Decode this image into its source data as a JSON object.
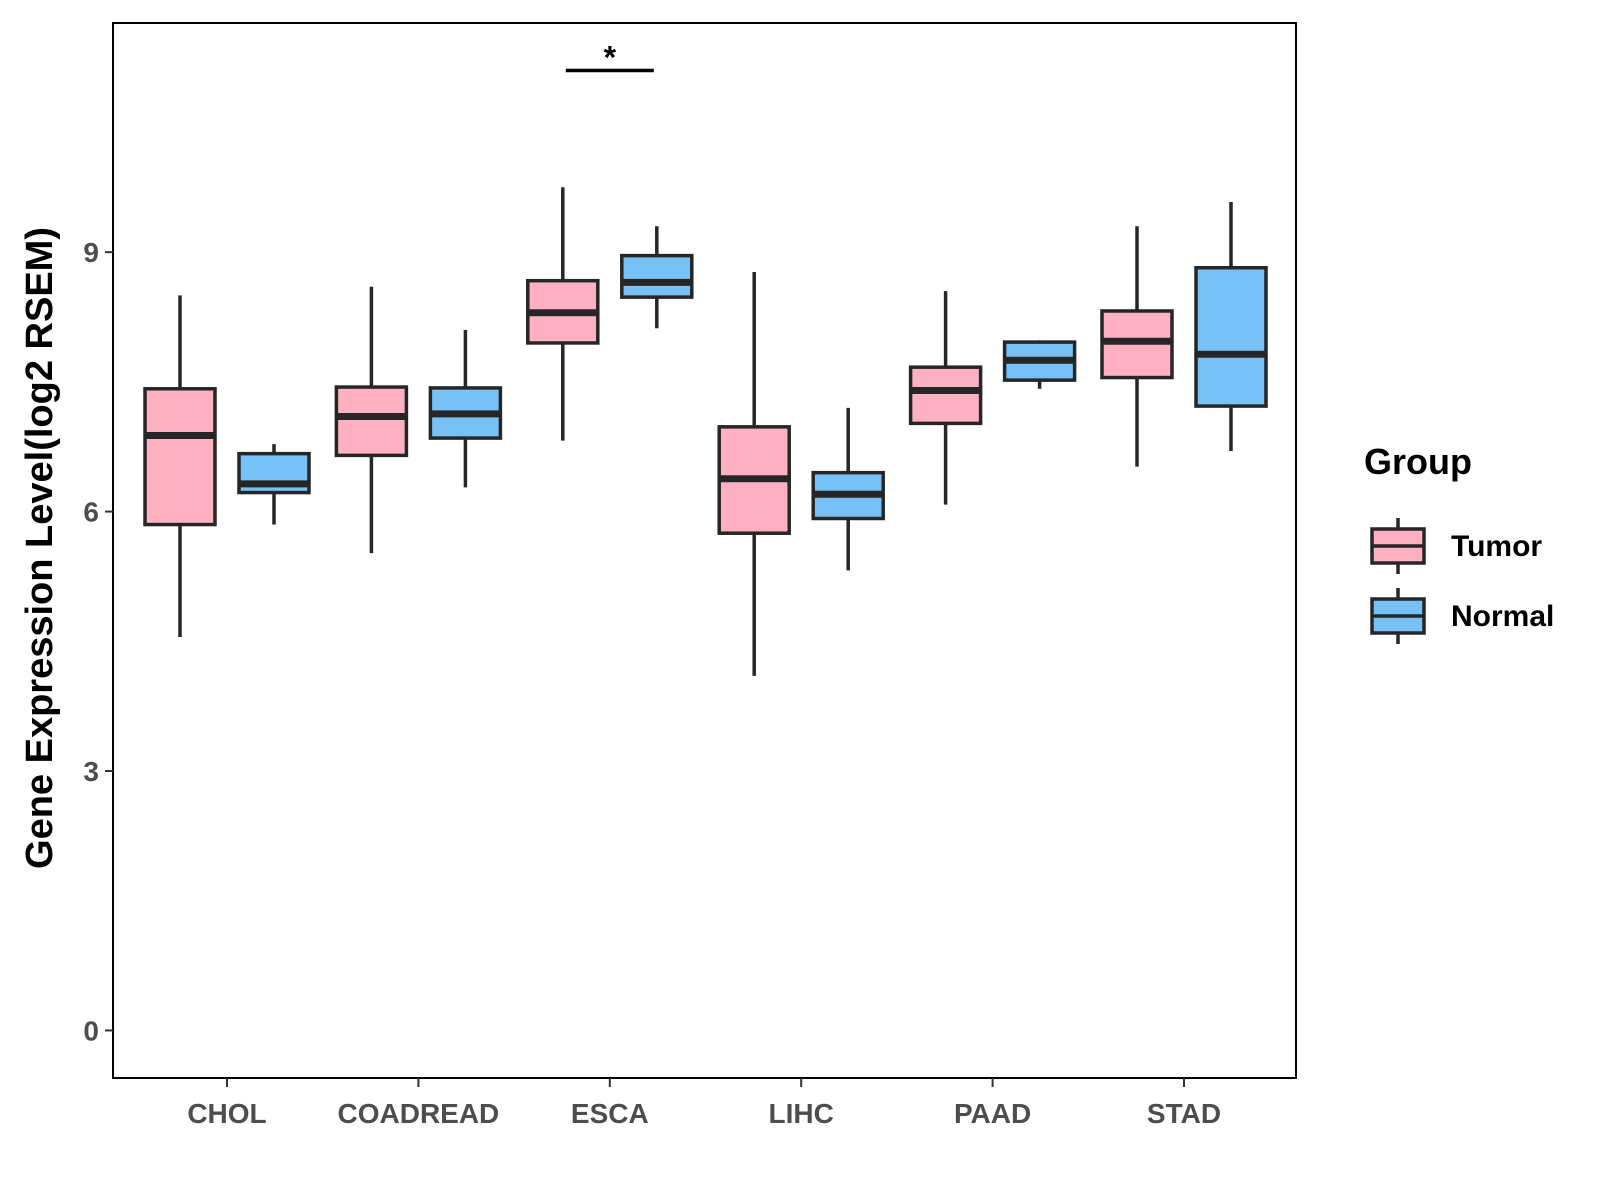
{
  "chart_data": {
    "type": "boxplot",
    "title": "",
    "xlabel": "",
    "ylabel": "Gene Expression Level(log2 RSEM)",
    "ylim": [
      -0.55,
      11.65
    ],
    "yticks": [
      0,
      3,
      6,
      9
    ],
    "categories": [
      "CHOL",
      "COADREAD",
      "ESCA",
      "LIHC",
      "PAAD",
      "STAD"
    ],
    "legend": {
      "title": "Group",
      "position": "right",
      "entries": [
        "Tumor",
        "Normal"
      ]
    },
    "series": [
      {
        "name": "Tumor",
        "color": "#ffb0c3",
        "boxes": [
          {
            "category": "CHOL",
            "min": 4.55,
            "q1": 5.85,
            "median": 6.88,
            "q3": 7.42,
            "max": 8.5
          },
          {
            "category": "COADREAD",
            "min": 5.52,
            "q1": 6.65,
            "median": 7.1,
            "q3": 7.44,
            "max": 8.6
          },
          {
            "category": "ESCA",
            "min": 6.82,
            "q1": 7.95,
            "median": 8.3,
            "q3": 8.67,
            "max": 9.75
          },
          {
            "category": "LIHC",
            "min": 4.1,
            "q1": 5.75,
            "median": 6.38,
            "q3": 6.98,
            "max": 8.77
          },
          {
            "category": "PAAD",
            "min": 6.08,
            "q1": 7.02,
            "median": 7.4,
            "q3": 7.67,
            "max": 8.55
          },
          {
            "category": "STAD",
            "min": 6.52,
            "q1": 7.55,
            "median": 7.97,
            "q3": 8.32,
            "max": 9.3
          }
        ]
      },
      {
        "name": "Normal",
        "color": "#77c1f7",
        "boxes": [
          {
            "category": "CHOL",
            "min": 5.85,
            "q1": 6.22,
            "median": 6.32,
            "q3": 6.67,
            "max": 6.78
          },
          {
            "category": "COADREAD",
            "min": 6.28,
            "q1": 6.85,
            "median": 7.13,
            "q3": 7.43,
            "max": 8.1
          },
          {
            "category": "ESCA",
            "min": 8.12,
            "q1": 8.48,
            "median": 8.65,
            "q3": 8.96,
            "max": 9.3
          },
          {
            "category": "LIHC",
            "min": 5.32,
            "q1": 5.92,
            "median": 6.2,
            "q3": 6.45,
            "max": 7.2
          },
          {
            "category": "PAAD",
            "min": 7.42,
            "q1": 7.52,
            "median": 7.75,
            "q3": 7.96,
            "max": 7.98
          },
          {
            "category": "STAD",
            "min": 6.7,
            "q1": 7.22,
            "median": 7.82,
            "q3": 8.82,
            "max": 9.58
          }
        ]
      }
    ],
    "annotations": [
      {
        "category": "ESCA",
        "text": "*",
        "y": 11.1
      }
    ]
  }
}
